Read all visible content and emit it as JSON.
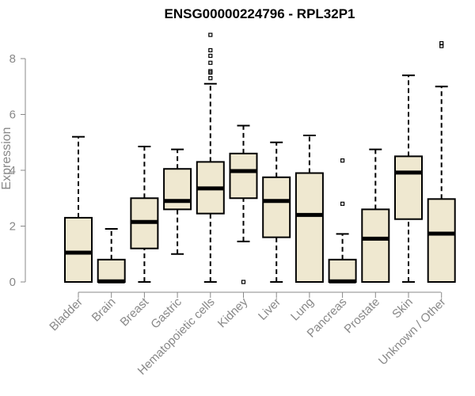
{
  "chart_data": {
    "type": "boxplot",
    "title": "ENSG00000224796 - RPL32P1",
    "ylabel": "Expression",
    "xlabel": "",
    "ylim": [
      0,
      9
    ],
    "yticks": [
      0,
      2,
      4,
      6,
      8
    ],
    "grid": false,
    "colors": {
      "box_fill": "#efe8d0",
      "stroke": "#000000",
      "axis": "#888888"
    },
    "categories": [
      "Bladder",
      "Brain",
      "Breast",
      "Gastric",
      "Hematopoietic cells",
      "Kidney",
      "Liver",
      "Lung",
      "Pancreas",
      "Prostate",
      "Skin",
      "Unknown / Other"
    ],
    "boxes": [
      {
        "min": 0,
        "q1": 0,
        "median": 1.05,
        "q3": 2.3,
        "max": 5.2,
        "outliers": []
      },
      {
        "min": 0,
        "q1": 0,
        "median": 0.02,
        "q3": 0.8,
        "max": 1.9,
        "outliers": []
      },
      {
        "min": 0,
        "q1": 1.2,
        "median": 2.15,
        "q3": 3.0,
        "max": 4.85,
        "outliers": []
      },
      {
        "min": 1.0,
        "q1": 2.6,
        "median": 2.9,
        "q3": 4.05,
        "max": 4.75,
        "outliers": []
      },
      {
        "min": 0,
        "q1": 2.45,
        "median": 3.35,
        "q3": 4.3,
        "max": 7.1,
        "outliers": [
          7.3,
          7.5,
          7.55,
          7.85,
          8.1,
          8.3,
          8.85
        ]
      },
      {
        "min": 1.45,
        "q1": 3.0,
        "median": 3.97,
        "q3": 4.6,
        "max": 5.6,
        "outliers": [
          0
        ]
      },
      {
        "min": 0,
        "q1": 1.6,
        "median": 2.9,
        "q3": 3.75,
        "max": 5.0,
        "outliers": []
      },
      {
        "min": 0,
        "q1": 0,
        "median": 2.4,
        "q3": 3.9,
        "max": 5.25,
        "outliers": []
      },
      {
        "min": 0,
        "q1": 0,
        "median": 0.02,
        "q3": 0.8,
        "max": 1.72,
        "outliers": [
          2.8,
          4.35
        ]
      },
      {
        "min": 0,
        "q1": 0,
        "median": 1.55,
        "q3": 2.6,
        "max": 4.75,
        "outliers": []
      },
      {
        "min": 0,
        "q1": 2.25,
        "median": 3.92,
        "q3": 4.5,
        "max": 7.4,
        "outliers": []
      },
      {
        "min": 0,
        "q1": 0,
        "median": 1.73,
        "q3": 2.97,
        "max": 7.0,
        "outliers": [
          8.45,
          8.55
        ]
      }
    ]
  }
}
